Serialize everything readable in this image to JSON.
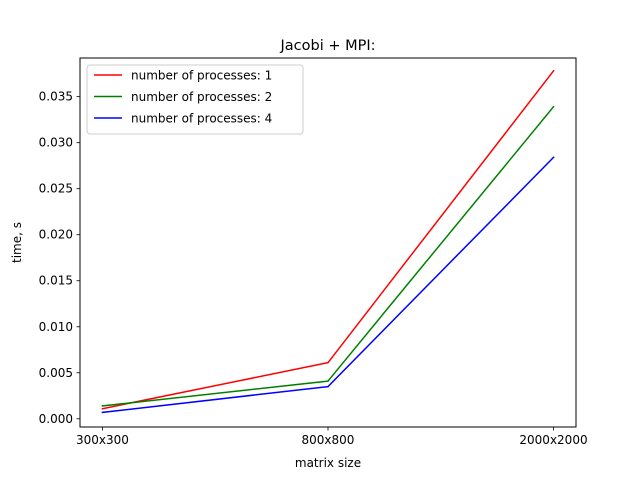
{
  "chart_data": {
    "type": "line",
    "title": "Jacobi + MPI:",
    "xlabel": "matrix size",
    "ylabel": "time, s",
    "categories": [
      "300x300",
      "800x800",
      "2000x2000"
    ],
    "ylim": [
      -0.00089,
      0.0392
    ],
    "yticks": [
      0.0,
      0.005,
      0.01,
      0.015,
      0.02,
      0.025,
      0.03,
      0.035
    ],
    "ytick_labels": [
      "0.000",
      "0.005",
      "0.010",
      "0.015",
      "0.020",
      "0.025",
      "0.030",
      "0.035"
    ],
    "grid": false,
    "legend_position": "top-left",
    "series": [
      {
        "name": "number of processes: 1",
        "color": "#ff0000",
        "values": [
          0.0011,
          0.0061,
          0.0378
        ]
      },
      {
        "name": "number of processes: 2",
        "color": "#008000",
        "values": [
          0.0014,
          0.0041,
          0.0339
        ]
      },
      {
        "name": "number of processes: 4",
        "color": "#0000ff",
        "values": [
          0.0007,
          0.0035,
          0.0284
        ]
      }
    ]
  }
}
